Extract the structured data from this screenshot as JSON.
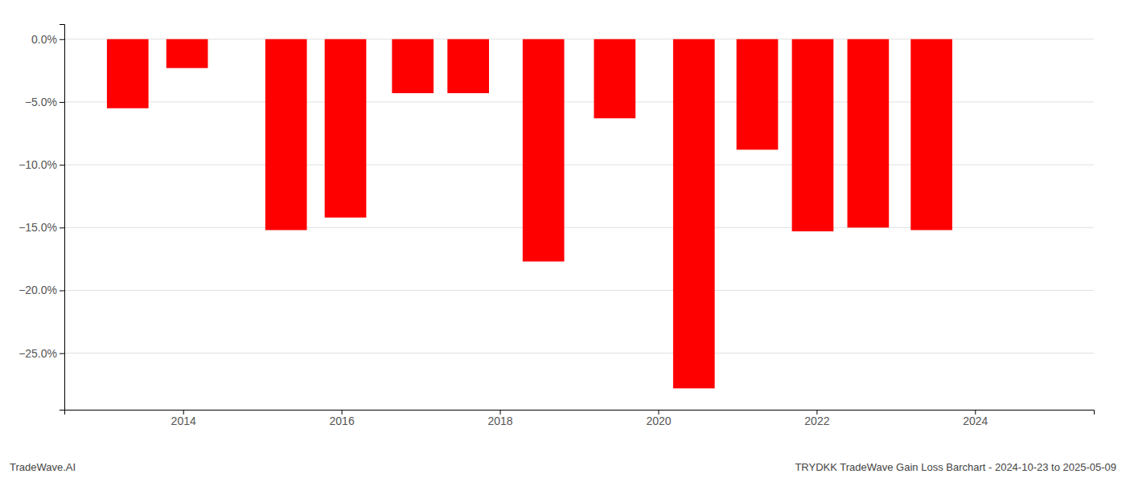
{
  "chart_data": {
    "type": "bar",
    "x": [
      2013.3,
      2014.05,
      2015.3,
      2016.05,
      2016.9,
      2017.6,
      2018.55,
      2019.45,
      2020.45,
      2021.25,
      2021.95,
      2022.65,
      2023.45
    ],
    "values": [
      -5.5,
      -2.3,
      -15.2,
      -14.2,
      -4.3,
      -4.3,
      -17.7,
      -6.3,
      -27.8,
      -8.8,
      -15.3,
      -15.0,
      -15.2
    ],
    "color": "#ff0000",
    "xlim": [
      2012.5,
      2025.5
    ],
    "xticks": [
      2014,
      2016,
      2018,
      2020,
      2022,
      2024
    ],
    "ylim": [
      -29.5,
      1.2
    ],
    "yticks": [
      {
        "value": 0.0,
        "label": "0.0%"
      },
      {
        "value": -5.0,
        "label": "−5.0%"
      },
      {
        "value": -10.0,
        "label": "−10.0%"
      },
      {
        "value": -15.0,
        "label": "−15.0%"
      },
      {
        "value": -20.0,
        "label": "−20.0%"
      },
      {
        "value": -25.0,
        "label": "−25.0%"
      }
    ],
    "grid": true,
    "annotations": [
      "TradeWave.AI",
      "TRYDKK TradeWave Gain Loss Barchart - 2024-10-23 to 2025-05-09"
    ]
  }
}
